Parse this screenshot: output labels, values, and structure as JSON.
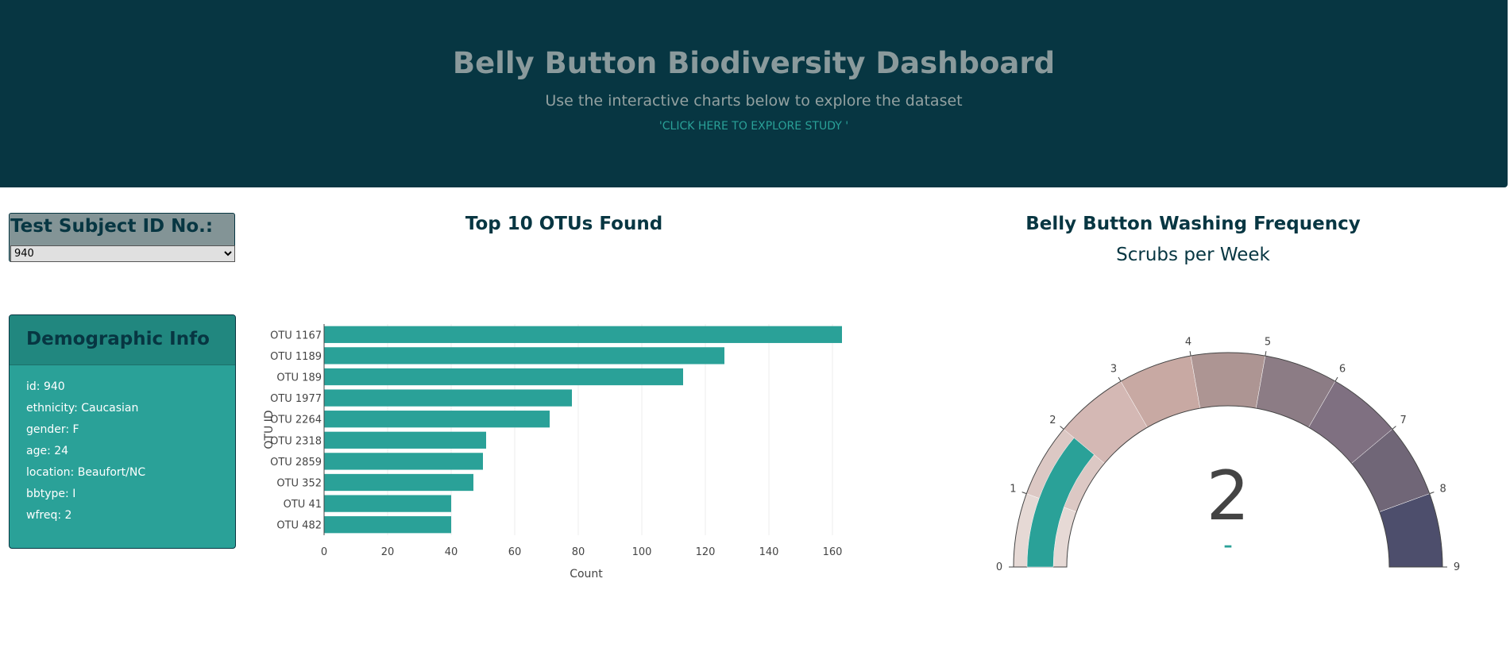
{
  "header": {
    "title": "Belly Button Biodiversity Dashboard",
    "subtitle": "Use the interactive charts below to explore the dataset",
    "link": "'CLICK HERE TO EXPLORE STUDY '"
  },
  "selector": {
    "label": "Test Subject ID No.:",
    "selected": "940"
  },
  "demographics": {
    "title": "Demographic Info",
    "items": [
      "id: 940",
      "ethnicity: Caucasian",
      "gender: F",
      "age: 24",
      "location: Beaufort/NC",
      "bbtype: I",
      "wfreq: 2"
    ]
  },
  "bar_chart": {
    "title": "Top 10 OTUs Found"
  },
  "gauge": {
    "title": "Belly Button Washing Frequency",
    "subtitle": "Scrubs per Week",
    "value_text": "2",
    "delta_text": "–",
    "value": 2,
    "min": 0,
    "max": 9,
    "ticks": [
      "0",
      "1",
      "2",
      "3",
      "4",
      "5",
      "6",
      "7",
      "8",
      "9"
    ],
    "step_colors": [
      "#e6d9d5",
      "#dcc8c4",
      "#d4b8b4",
      "#c8a9a3",
      "#ad9593",
      "#8c7c85",
      "#7f7081",
      "#706677",
      "#4d4e6c"
    ],
    "bar_color": "#2aa198"
  },
  "chart_data": {
    "type": "bar",
    "orientation": "horizontal",
    "categories": [
      "OTU 1167",
      "OTU 1189",
      "OTU 189",
      "OTU 1977",
      "OTU 2264",
      "OTU 2318",
      "OTU 2859",
      "OTU 352",
      "OTU 41",
      "OTU 482"
    ],
    "values": [
      163,
      126,
      113,
      78,
      71,
      51,
      50,
      47,
      40,
      40
    ],
    "title": "Top 10 OTUs Found",
    "xlabel": "Count",
    "ylabel": "OTU ID",
    "xlim": [
      0,
      165
    ],
    "xticks": [
      0,
      20,
      40,
      60,
      80,
      100,
      120,
      140,
      160
    ],
    "grid": true,
    "color": "#2aa198"
  }
}
